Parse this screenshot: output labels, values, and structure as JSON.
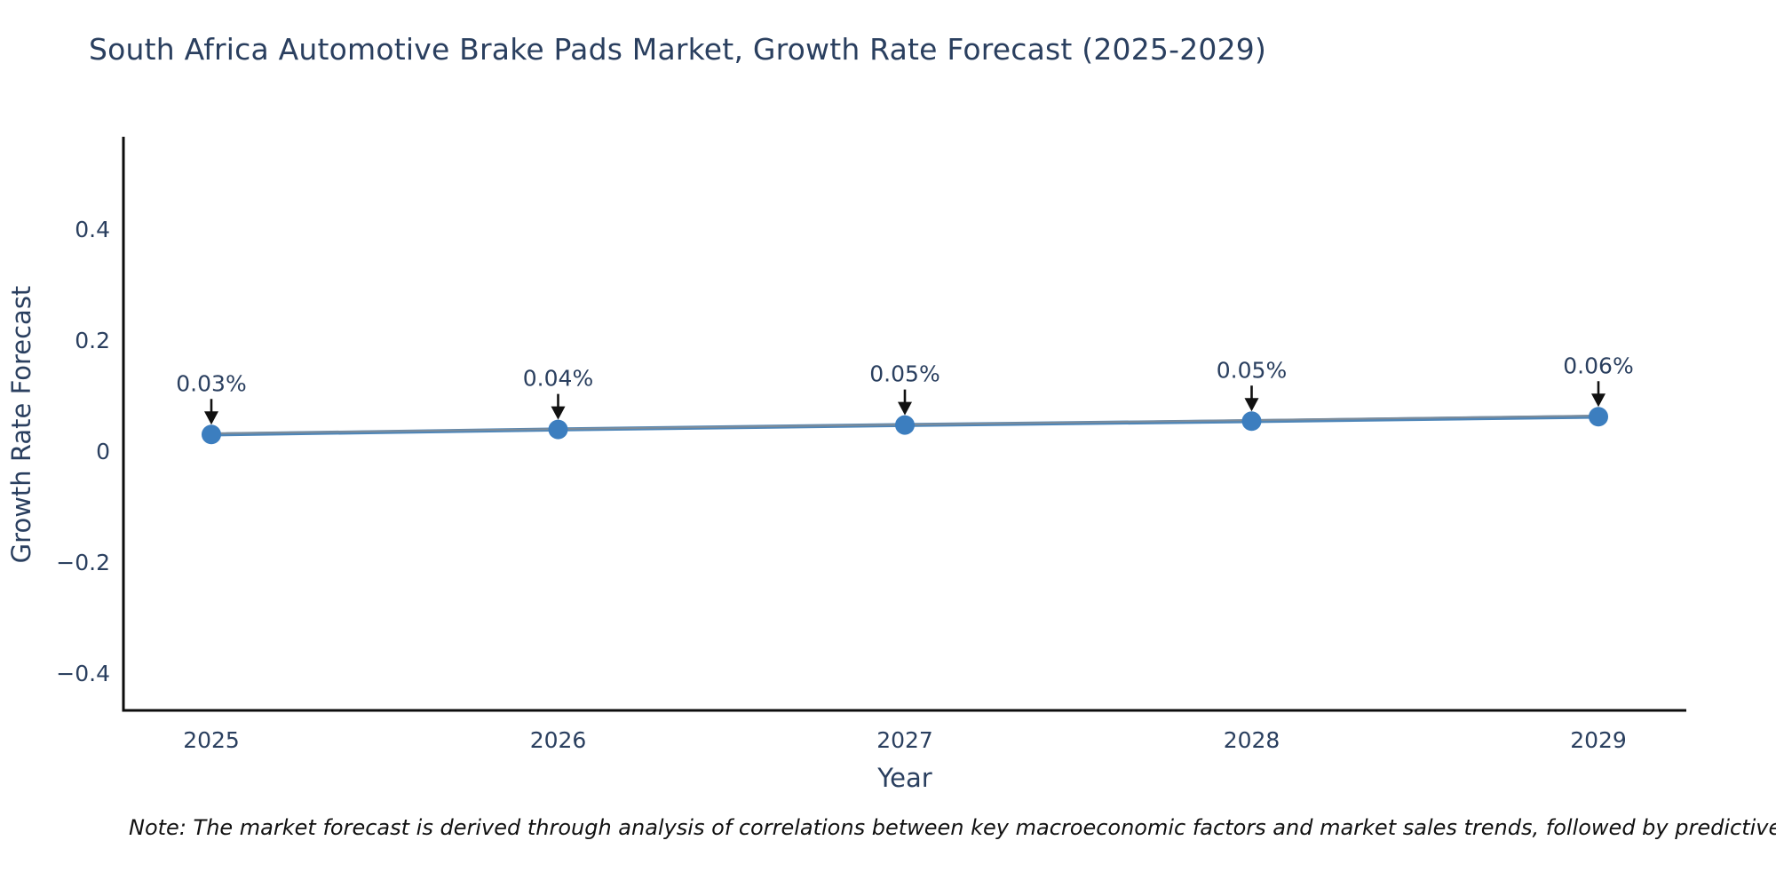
{
  "chart_data": {
    "type": "line",
    "title": "South Africa Automotive Brake Pads Market, Growth Rate Forecast (2025-2029)",
    "xlabel": "Year",
    "ylabel": "Growth Rate Forecast",
    "x": [
      2025,
      2026,
      2027,
      2028,
      2029
    ],
    "xtick_labels": [
      "2025",
      "2026",
      "2027",
      "2028",
      "2029"
    ],
    "values": [
      0.03,
      0.04,
      0.05,
      0.05,
      0.06
    ],
    "point_labels": [
      "0.03%",
      "0.04%",
      "0.05%",
      "0.05%",
      "0.06%"
    ],
    "values_plotted_est": [
      0.03,
      0.039,
      0.047,
      0.054,
      0.062
    ],
    "yticks": [
      0.4,
      0.2,
      0,
      -0.2,
      -0.4
    ],
    "ytick_labels": [
      "0.4",
      "0.2",
      "0",
      "−0.2",
      "−0.4"
    ],
    "ylim": [
      -0.47,
      0.56
    ],
    "grid": false,
    "legend_position": "none",
    "annotation_style": "black-down-arrows",
    "colors": {
      "line": "#4f86b8",
      "trend_overlay": "#7e8c99",
      "marker": "#3c7ebf",
      "arrow": "#111111",
      "axis": "#0d0d0d",
      "text": "#2a3f5f",
      "note": "#111111"
    }
  },
  "note": {
    "text": "Note: The market forecast is derived through analysis of correlations between key macroeconomic factors and market sales trends, followed by predictive modeling to project future sales"
  }
}
